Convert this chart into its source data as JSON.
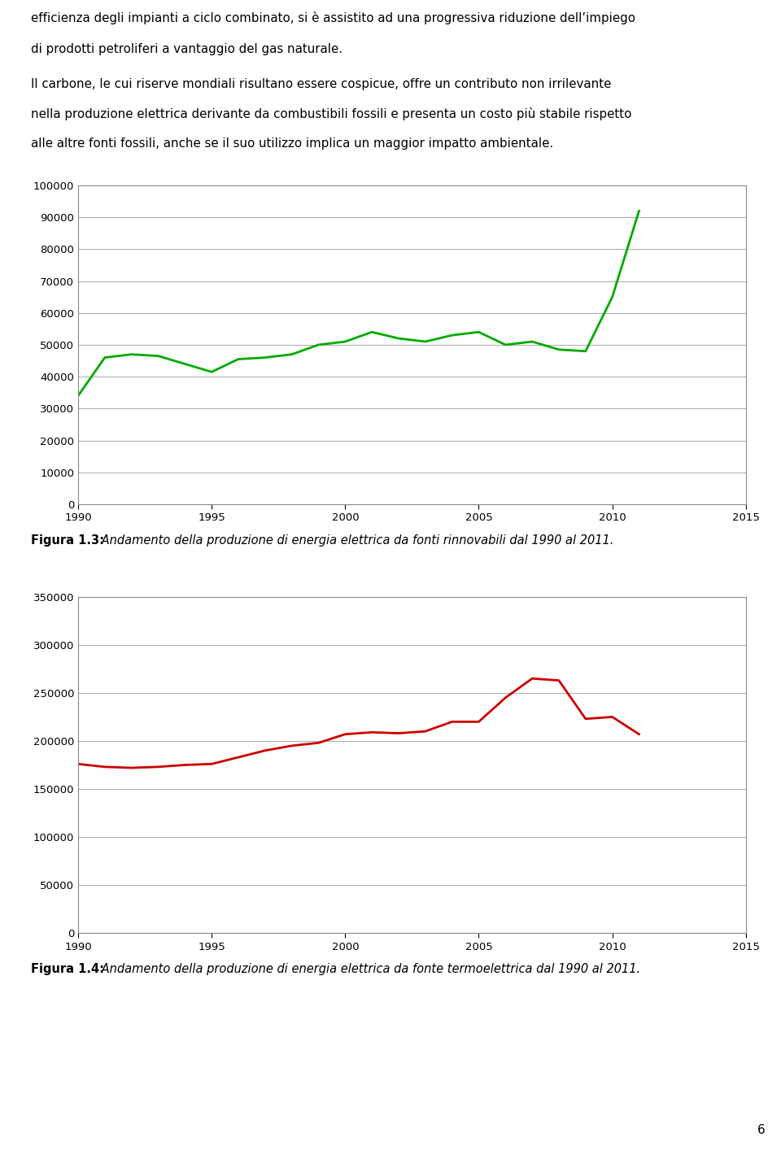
{
  "text_header_line1": "efficienza degli impianti a ciclo combinato, si è assistito ad una progressiva riduzione dell’impiego",
  "text_header_line2": "di prodotti petroliferi a vantaggio del gas naturale.",
  "text_header_line3": "Il carbone, le cui riserve mondiali risultano essere cospicue, offre un contributo non irrilevante",
  "text_header_line4": "nella produzione elettrica derivante da combustibili fossili e presenta un costo più stabile rispetto",
  "text_header_line5": "alle altre fonti fossili, anche se il suo utilizzo implica un maggior impatto ambientale.",
  "chart1": {
    "color": "#00aa00",
    "xlim": [
      1990,
      2015
    ],
    "ylim": [
      0,
      100000
    ],
    "yticks": [
      0,
      10000,
      20000,
      30000,
      40000,
      50000,
      60000,
      70000,
      80000,
      90000,
      100000
    ],
    "xticks": [
      1990,
      1995,
      2000,
      2005,
      2010,
      2015
    ],
    "years": [
      1990,
      1991,
      1992,
      1993,
      1994,
      1995,
      1996,
      1997,
      1998,
      1999,
      2000,
      2001,
      2002,
      2003,
      2004,
      2005,
      2006,
      2007,
      2008,
      2009,
      2010,
      2011
    ],
    "values": [
      34000,
      46000,
      47000,
      46500,
      44000,
      41500,
      45500,
      46000,
      47000,
      50000,
      51000,
      54000,
      52000,
      51000,
      53000,
      54000,
      50000,
      51000,
      48500,
      48000,
      65000,
      92000
    ],
    "caption_bold": "Figura 1.3:",
    "caption_italic": " Andamento della produzione di energia elettrica da fonti rinnovabili dal 1990 al 2011."
  },
  "chart2": {
    "color": "#cc0000",
    "xlim": [
      1990,
      2015
    ],
    "ylim": [
      0,
      350000
    ],
    "yticks": [
      0,
      50000,
      100000,
      150000,
      200000,
      250000,
      300000,
      350000
    ],
    "xticks": [
      1990,
      1995,
      2000,
      2005,
      2010,
      2015
    ],
    "years": [
      1990,
      1991,
      1992,
      1993,
      1994,
      1995,
      1996,
      1997,
      1998,
      1999,
      2000,
      2001,
      2002,
      2003,
      2004,
      2005,
      2006,
      2007,
      2008,
      2009,
      2010,
      2011
    ],
    "values": [
      176000,
      173000,
      172000,
      173000,
      175000,
      176000,
      183000,
      190000,
      195000,
      198000,
      207000,
      209000,
      208000,
      210000,
      220000,
      220000,
      245000,
      265000,
      263000,
      223000,
      225000,
      207000
    ],
    "caption_bold": "Figura 1.4:",
    "caption_italic": " Andamento della produzione di energia elettrica da fonte termoelettrica dal 1990 al 2011."
  },
  "page_number": "6",
  "background_color": "#ffffff",
  "line_width": 2.0,
  "grid_color": "#aaaaaa",
  "box_color": "#888888"
}
